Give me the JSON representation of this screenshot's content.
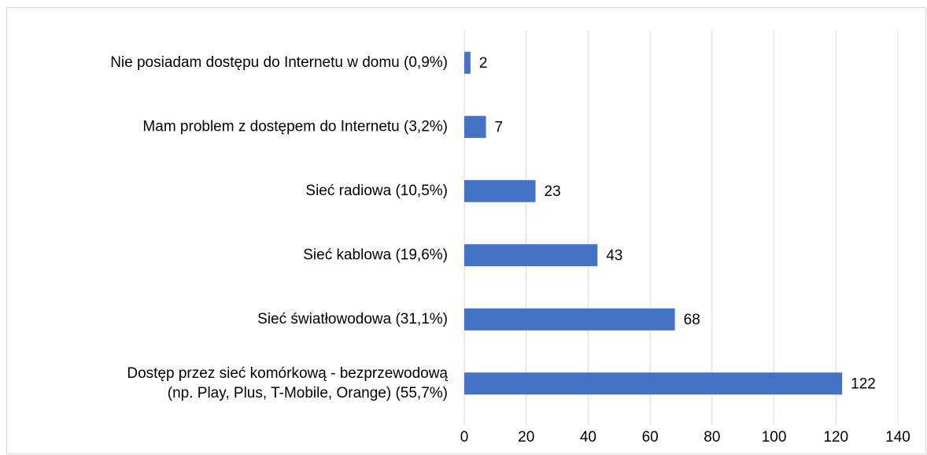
{
  "chart_data": {
    "type": "bar",
    "orientation": "horizontal",
    "categories": [
      "Nie posiadam dostępu do Internetu w domu (0,9%)",
      "Mam problem z dostępem do Internetu (3,2%)",
      "Sieć radiowa (10,5%)",
      "Sieć kablowa (19,6%)",
      "Sieć światłowodowa (31,1%)",
      [
        "Dostęp przez sieć komórkową  - bezprzewodową",
        "(np. Play, Plus, T-Mobile, Orange) (55,7%)"
      ]
    ],
    "values": [
      2,
      7,
      23,
      43,
      68,
      122
    ],
    "color": "#4472c4",
    "xlim": [
      0,
      140
    ],
    "xticks": [
      0,
      20,
      40,
      60,
      80,
      100,
      120,
      140
    ],
    "grid": true
  }
}
